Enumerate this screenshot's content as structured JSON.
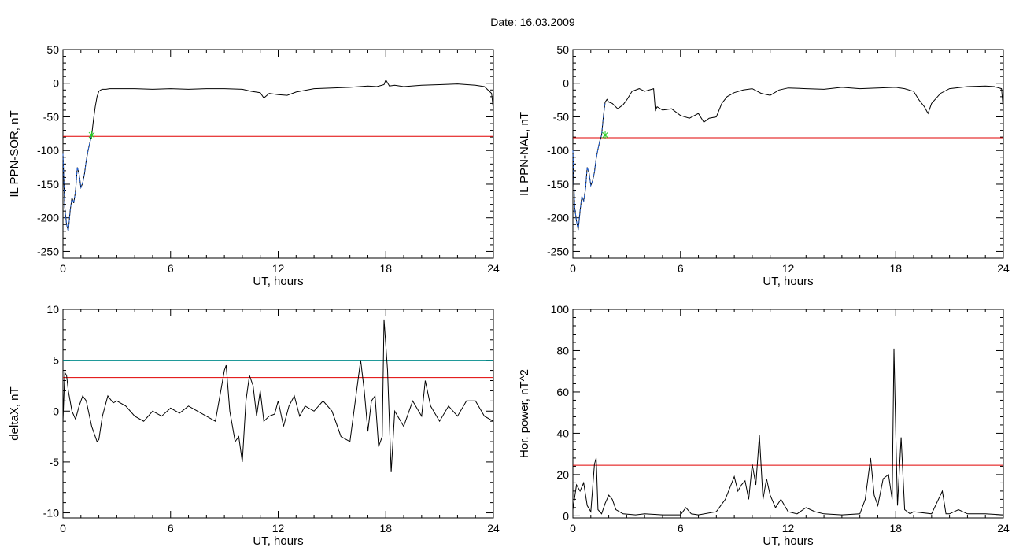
{
  "figure": {
    "title": "Date:  16.03.2009"
  },
  "colors": {
    "line": "#000000",
    "threshold_red": "#e00000",
    "threshold_cyan": "#008b8b",
    "onset_blue": "#1f5fd6",
    "marker_green": "#22cc22"
  },
  "chart_data": [
    {
      "id": "il-ppn-sor",
      "type": "line",
      "xlabel": "UT, hours",
      "ylabel": "IL PPN-SOR, nT",
      "xlim": [
        0,
        24
      ],
      "ylim": [
        -260,
        50
      ],
      "xticks": [
        0,
        6,
        12,
        18,
        24
      ],
      "yticks": [
        50,
        0,
        -50,
        -100,
        -150,
        -200,
        -250
      ],
      "grid": false,
      "threshold": -79,
      "threshold_color": "red",
      "onset_marker": {
        "x": 1.6,
        "y": -77
      },
      "onset_segment_end": 1.6,
      "series": [
        {
          "x": [
            0,
            0.1,
            0.2,
            0.3,
            0.4,
            0.5,
            0.6,
            0.7,
            0.8,
            0.9,
            1.0,
            1.1,
            1.2,
            1.3,
            1.4,
            1.5,
            1.6,
            1.7,
            1.8,
            1.9,
            2.0,
            2.1,
            2.2,
            2.4,
            2.6,
            3.0,
            4.0,
            5.0,
            6.0,
            7.0,
            8.0,
            9.0,
            10.0,
            10.5,
            11.0,
            11.2,
            11.5,
            12.0,
            12.5,
            13.0,
            14.0,
            15.0,
            16.0,
            17.0,
            17.5,
            17.9,
            18.0,
            18.2,
            18.5,
            19.0,
            20.0,
            21.0,
            22.0,
            23.0,
            23.5,
            23.9,
            24.0
          ],
          "y": [
            -105,
            -185,
            -210,
            -220,
            -190,
            -170,
            -178,
            -160,
            -125,
            -135,
            -155,
            -148,
            -135,
            -115,
            -100,
            -88,
            -77,
            -55,
            -35,
            -20,
            -12,
            -10,
            -9,
            -9,
            -8,
            -8,
            -8,
            -9,
            -8,
            -9,
            -8,
            -8,
            -9,
            -12,
            -14,
            -22,
            -15,
            -17,
            -18,
            -13,
            -8,
            -7,
            -6,
            -4,
            -5,
            -2,
            5,
            -4,
            -3,
            -5,
            -3,
            -2,
            -1,
            -3,
            -5,
            -15,
            -40
          ]
        }
      ]
    },
    {
      "id": "il-ppn-nal",
      "type": "line",
      "xlabel": "UT, hours",
      "ylabel": "IL PPN-NAL, nT",
      "xlim": [
        0,
        24
      ],
      "ylim": [
        -260,
        50
      ],
      "xticks": [
        0,
        6,
        12,
        18,
        24
      ],
      "yticks": [
        50,
        0,
        -50,
        -100,
        -150,
        -200,
        -250
      ],
      "grid": false,
      "threshold": -81,
      "threshold_color": "red",
      "onset_marker": {
        "x": 1.8,
        "y": -77
      },
      "onset_segment_end": 1.8,
      "series": [
        {
          "x": [
            0,
            0.1,
            0.2,
            0.3,
            0.4,
            0.5,
            0.6,
            0.7,
            0.8,
            0.9,
            1.0,
            1.1,
            1.2,
            1.3,
            1.4,
            1.5,
            1.6,
            1.7,
            1.8,
            1.9,
            2.0,
            2.2,
            2.5,
            2.8,
            3.0,
            3.3,
            3.7,
            4.0,
            4.5,
            4.6,
            4.7,
            5.0,
            5.5,
            6.0,
            6.5,
            7.0,
            7.3,
            7.6,
            8.0,
            8.3,
            8.6,
            9.0,
            9.5,
            10.0,
            10.5,
            11.0,
            11.5,
            12.0,
            13.0,
            14.0,
            15.0,
            16.0,
            17.0,
            18.0,
            18.5,
            19.0,
            19.3,
            19.6,
            19.8,
            20.0,
            20.5,
            21.0,
            22.0,
            23.0,
            23.5,
            23.9,
            24.0
          ],
          "y": [
            -100,
            -185,
            -205,
            -218,
            -190,
            -168,
            -175,
            -158,
            -125,
            -133,
            -152,
            -145,
            -132,
            -112,
            -98,
            -86,
            -77,
            -50,
            -28,
            -24,
            -28,
            -30,
            -38,
            -32,
            -25,
            -12,
            -8,
            -12,
            -8,
            -40,
            -35,
            -40,
            -38,
            -48,
            -52,
            -45,
            -58,
            -52,
            -50,
            -30,
            -20,
            -14,
            -10,
            -8,
            -15,
            -18,
            -10,
            -7,
            -8,
            -9,
            -6,
            -8,
            -7,
            -6,
            -8,
            -12,
            -25,
            -35,
            -45,
            -30,
            -15,
            -8,
            -5,
            -4,
            -5,
            -8,
            -40
          ]
        }
      ]
    },
    {
      "id": "delta-x",
      "type": "line",
      "xlabel": "UT, hours",
      "ylabel": "deltaX, nT",
      "xlim": [
        0,
        24
      ],
      "ylim": [
        -10.5,
        10
      ],
      "xticks": [
        0,
        6,
        12,
        18,
        24
      ],
      "yticks": [
        10,
        5,
        0,
        -5,
        -10
      ],
      "grid": false,
      "threshold": 3.3,
      "threshold_color": "red",
      "threshold2": 5.0,
      "threshold2_color": "cyan",
      "series": [
        {
          "x": [
            0,
            0.1,
            0.2,
            0.3,
            0.5,
            0.7,
            0.9,
            1.1,
            1.3,
            1.6,
            1.9,
            2.0,
            2.2,
            2.5,
            2.8,
            3.0,
            3.5,
            4.0,
            4.5,
            5.0,
            5.5,
            6.0,
            6.5,
            7.0,
            7.5,
            8.0,
            8.5,
            8.8,
            9.0,
            9.1,
            9.3,
            9.6,
            9.8,
            10.0,
            10.2,
            10.4,
            10.6,
            10.8,
            11.0,
            11.2,
            11.5,
            11.8,
            12.0,
            12.3,
            12.6,
            12.9,
            13.2,
            13.5,
            14.0,
            14.5,
            15.0,
            15.5,
            16.0,
            16.3,
            16.6,
            16.8,
            17.0,
            17.2,
            17.4,
            17.6,
            17.8,
            17.9,
            18.1,
            18.3,
            18.5,
            19.0,
            19.5,
            20.0,
            20.2,
            20.5,
            21.0,
            21.5,
            22.0,
            22.5,
            23.0,
            23.5,
            24.0
          ],
          "y": [
            -1.0,
            3.8,
            3.5,
            2.0,
            0.0,
            -0.8,
            0.5,
            1.5,
            1.0,
            -1.5,
            -3.0,
            -2.8,
            -0.5,
            1.5,
            0.8,
            1.0,
            0.5,
            -0.5,
            -1.0,
            0.0,
            -0.5,
            0.3,
            -0.2,
            0.5,
            0.0,
            -0.5,
            -1.0,
            2.0,
            4.0,
            4.5,
            0.0,
            -3.0,
            -2.5,
            -5.0,
            1.0,
            3.5,
            2.5,
            -0.5,
            2.0,
            -1.0,
            -0.5,
            -0.3,
            1.0,
            -1.5,
            0.5,
            1.5,
            -0.5,
            0.5,
            0.0,
            1.0,
            0.0,
            -2.5,
            -3.0,
            1.0,
            5.0,
            2.0,
            -2.0,
            1.0,
            1.5,
            -3.5,
            -2.5,
            9.0,
            4.0,
            -6.0,
            0.0,
            -1.5,
            1.0,
            -0.5,
            3.0,
            0.5,
            -1.0,
            0.5,
            -0.5,
            1.0,
            1.0,
            -0.5,
            -1.0
          ]
        }
      ]
    },
    {
      "id": "hor-power",
      "type": "line",
      "xlabel": "UT, hours",
      "ylabel": "Hor. power, nT^2",
      "xlim": [
        0,
        24
      ],
      "ylim": [
        -1,
        100
      ],
      "xticks": [
        0,
        6,
        12,
        18,
        24
      ],
      "yticks": [
        100,
        80,
        60,
        40,
        20,
        0
      ],
      "grid": false,
      "threshold": 24.5,
      "threshold_color": "red",
      "series": [
        {
          "x": [
            0,
            0.2,
            0.4,
            0.6,
            0.8,
            1.0,
            1.2,
            1.3,
            1.4,
            1.6,
            1.8,
            2.0,
            2.2,
            2.4,
            2.8,
            3.5,
            4.0,
            5.0,
            6.0,
            6.3,
            6.6,
            7.0,
            8.0,
            8.5,
            9.0,
            9.2,
            9.4,
            9.6,
            9.8,
            10.0,
            10.2,
            10.4,
            10.6,
            10.8,
            11.0,
            11.3,
            11.6,
            12.0,
            12.5,
            13.0,
            13.5,
            14.0,
            15.0,
            16.0,
            16.3,
            16.6,
            16.8,
            17.0,
            17.3,
            17.6,
            17.8,
            17.9,
            18.0,
            18.1,
            18.3,
            18.5,
            18.8,
            19.0,
            20.0,
            20.6,
            20.8,
            21.0,
            21.5,
            22.0,
            23.0,
            24.0
          ],
          "y": [
            3,
            15,
            12,
            16,
            5,
            2,
            25,
            28,
            3,
            1,
            6,
            10,
            8,
            3,
            1,
            0.5,
            1,
            0.5,
            0.5,
            4,
            1,
            0.5,
            2,
            8,
            19,
            12,
            15,
            17,
            8,
            25,
            15,
            39,
            8,
            18,
            10,
            4,
            8,
            2,
            1,
            4,
            2,
            1,
            0.5,
            1,
            8,
            28,
            10,
            5,
            18,
            20,
            8,
            81,
            40,
            5,
            38,
            3,
            1,
            2,
            1,
            12,
            1,
            1,
            3,
            1,
            1,
            0.5
          ]
        }
      ]
    }
  ]
}
